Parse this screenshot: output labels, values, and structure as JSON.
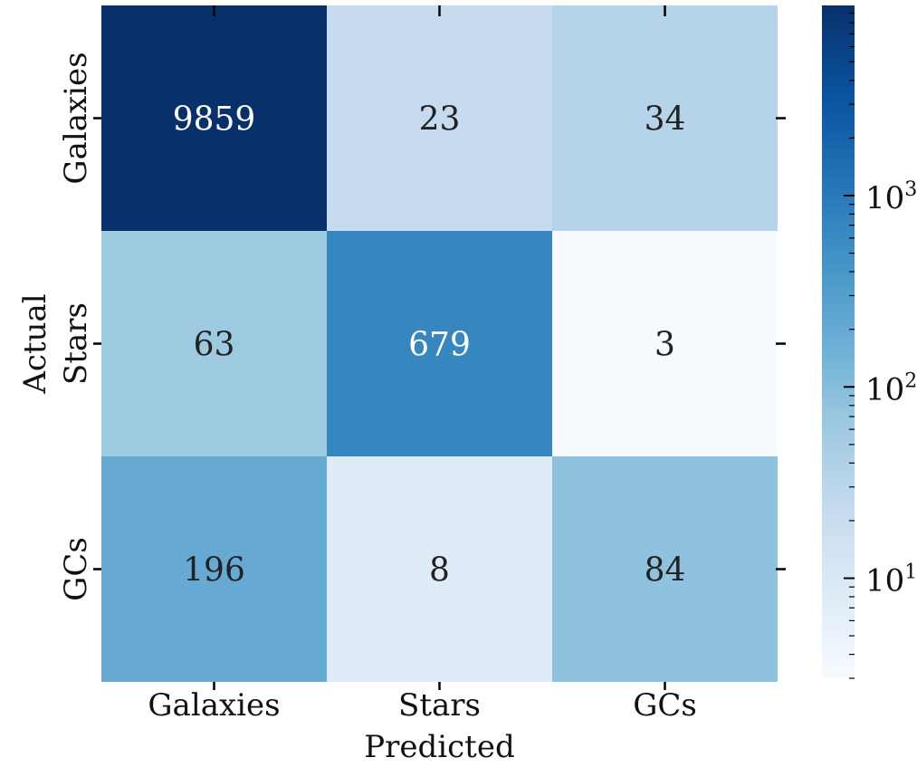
{
  "chart_data": {
    "type": "heatmap",
    "xlabel": "Predicted",
    "ylabel": "Actual",
    "x_categories": [
      "Galaxies",
      "Stars",
      "GCs"
    ],
    "y_categories": [
      "Galaxies",
      "Stars",
      "GCs"
    ],
    "values": [
      [
        9859,
        23,
        34
      ],
      [
        63,
        679,
        3
      ],
      [
        196,
        8,
        84
      ]
    ],
    "color_scale": "log",
    "colormap": "Blues",
    "vmin": 3,
    "vmax": 9859,
    "colorbar_ticks": [
      {
        "value": 10,
        "base": "10",
        "exp": "1"
      },
      {
        "value": 100,
        "base": "10",
        "exp": "2"
      },
      {
        "value": 1000,
        "base": "10",
        "exp": "3"
      }
    ]
  }
}
